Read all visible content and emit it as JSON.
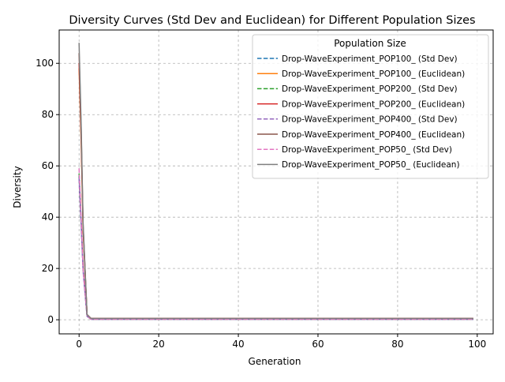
{
  "chart_data": {
    "type": "line",
    "title": "Diversity Curves (Std Dev and Euclidean) for Different Population Sizes",
    "xlabel": "Generation",
    "ylabel": "Diversity",
    "xlim": [
      -5,
      104
    ],
    "ylim": [
      -5.5,
      113
    ],
    "xticks": [
      0,
      20,
      40,
      60,
      80,
      100
    ],
    "yticks": [
      0,
      20,
      40,
      60,
      80,
      100
    ],
    "grid": true,
    "legend": {
      "title": "Population Size",
      "placement": "top-right"
    },
    "series": [
      {
        "name": "Drop-WaveExperiment_POP100_ (Std Dev)",
        "color": "#1f77b4",
        "dash": "dashed",
        "points": [
          [
            0,
            56
          ],
          [
            0.5,
            38
          ],
          [
            1,
            20
          ],
          [
            2,
            1.4
          ],
          [
            3,
            0.2
          ],
          [
            99,
            0.2
          ]
        ]
      },
      {
        "name": "Drop-WaveExperiment_POP100_ (Euclidean)",
        "color": "#ff7f0e",
        "dash": "solid",
        "points": [
          [
            0,
            98
          ],
          [
            0.5,
            70
          ],
          [
            1,
            35
          ],
          [
            2,
            2
          ],
          [
            3,
            0.4
          ],
          [
            99,
            0.4
          ]
        ]
      },
      {
        "name": "Drop-WaveExperiment_POP200_ (Std Dev)",
        "color": "#2ca02c",
        "dash": "dashed",
        "points": [
          [
            0,
            57
          ],
          [
            0.5,
            39
          ],
          [
            1,
            20
          ],
          [
            2,
            1.4
          ],
          [
            3,
            0.2
          ],
          [
            99,
            0.2
          ]
        ]
      },
      {
        "name": "Drop-WaveExperiment_POP200_ (Euclidean)",
        "color": "#d62728",
        "dash": "solid",
        "points": [
          [
            0,
            100
          ],
          [
            0.5,
            72
          ],
          [
            1,
            36
          ],
          [
            2,
            2
          ],
          [
            3,
            0.5
          ],
          [
            99,
            0.5
          ]
        ]
      },
      {
        "name": "Drop-WaveExperiment_POP400_ (Std Dev)",
        "color": "#9467bd",
        "dash": "dashed",
        "points": [
          [
            0,
            55
          ],
          [
            0.5,
            37
          ],
          [
            1,
            19
          ],
          [
            2,
            1.4
          ],
          [
            3,
            0.2
          ],
          [
            99,
            0.2
          ]
        ]
      },
      {
        "name": "Drop-WaveExperiment_POP400_ (Euclidean)",
        "color": "#8c564b",
        "dash": "solid",
        "points": [
          [
            0,
            104
          ],
          [
            0.5,
            75
          ],
          [
            1,
            37
          ],
          [
            2,
            2
          ],
          [
            3,
            0.5
          ],
          [
            99,
            0.5
          ]
        ]
      },
      {
        "name": "Drop-WaveExperiment_POP50_ (Std Dev)",
        "color": "#e377c2",
        "dash": "dashed",
        "points": [
          [
            0,
            59
          ],
          [
            0.5,
            40
          ],
          [
            1,
            20
          ],
          [
            2,
            1.4
          ],
          [
            3,
            0.2
          ],
          [
            99,
            0.2
          ]
        ]
      },
      {
        "name": "Drop-WaveExperiment_POP50_ (Euclidean)",
        "color": "#7f7f7f",
        "dash": "solid",
        "points": [
          [
            0,
            108
          ],
          [
            0.5,
            77
          ],
          [
            1,
            38
          ],
          [
            2,
            2
          ],
          [
            3,
            0.5
          ],
          [
            99,
            0.5
          ]
        ]
      }
    ]
  }
}
